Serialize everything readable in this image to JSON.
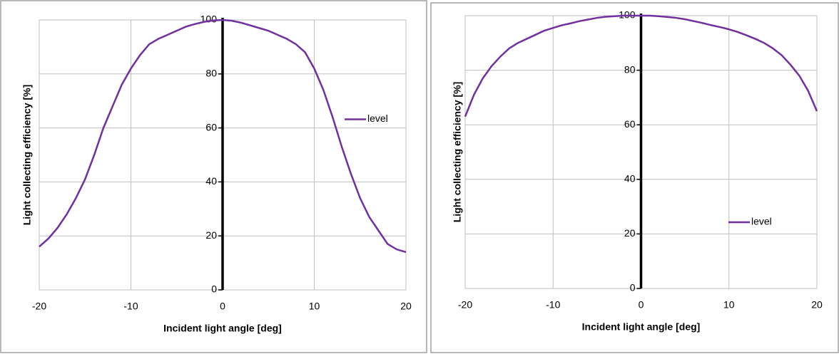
{
  "chart_data": [
    {
      "type": "line",
      "x_label": "Incident light angle [deg]",
      "y_label": "Light collecting efficiency [%]",
      "x": [
        -20,
        -19,
        -18,
        -17,
        -16,
        -15,
        -14,
        -13,
        -12,
        -11,
        -10,
        -9,
        -8,
        -7,
        -6,
        -5,
        -4,
        -3,
        -2,
        -1,
        0,
        1,
        2,
        3,
        4,
        5,
        6,
        7,
        8,
        9,
        10,
        11,
        12,
        13,
        14,
        15,
        16,
        17,
        18,
        19,
        20
      ],
      "series": [
        {
          "name": "level",
          "color": "#7030a0",
          "values": [
            16,
            19,
            23,
            28,
            34,
            41,
            50,
            60,
            68,
            76,
            82,
            87,
            91,
            93,
            94.5,
            96,
            97.5,
            98.5,
            99.3,
            99.8,
            100,
            99.7,
            99,
            98,
            97,
            96,
            94.5,
            93,
            91,
            88,
            82,
            74,
            64,
            53,
            43,
            34,
            27,
            22,
            17,
            15,
            14
          ]
        }
      ],
      "xlim": [
        -20,
        20
      ],
      "xticks": [
        -20,
        -10,
        0,
        10,
        20
      ],
      "ylim": [
        0,
        100
      ],
      "yticks": [
        0,
        20,
        40,
        60,
        80,
        100
      ],
      "grid": true,
      "legend": "right"
    },
    {
      "type": "line",
      "x_label": "Incident light angle [deg]",
      "y_label": "Light collecting efficiency [%]",
      "x": [
        -20,
        -19,
        -18,
        -17,
        -16,
        -15,
        -14,
        -13,
        -12,
        -11,
        -10,
        -9,
        -8,
        -7,
        -6,
        -5,
        -4,
        -3,
        -2,
        -1,
        0,
        1,
        2,
        3,
        4,
        5,
        6,
        7,
        8,
        9,
        10,
        11,
        12,
        13,
        14,
        15,
        16,
        17,
        18,
        19,
        20
      ],
      "series": [
        {
          "name": "level",
          "color": "#7030a0",
          "values": [
            63,
            71,
            77,
            81.5,
            85,
            88,
            90,
            91.5,
            93,
            94.5,
            95.5,
            96.5,
            97.2,
            98,
            98.6,
            99.2,
            99.6,
            99.8,
            100,
            100,
            100,
            100,
            99.8,
            99.5,
            99.2,
            98.7,
            98,
            97.3,
            96.5,
            95.8,
            95,
            94,
            92.8,
            91.5,
            90,
            88,
            85.5,
            82,
            78,
            72.5,
            65
          ]
        }
      ],
      "xlim": [
        -20,
        20
      ],
      "xticks": [
        -20,
        -10,
        0,
        10,
        20
      ],
      "ylim": [
        0,
        100
      ],
      "yticks": [
        0,
        20,
        40,
        60,
        80,
        100
      ],
      "grid": true,
      "legend": "lower right"
    }
  ]
}
